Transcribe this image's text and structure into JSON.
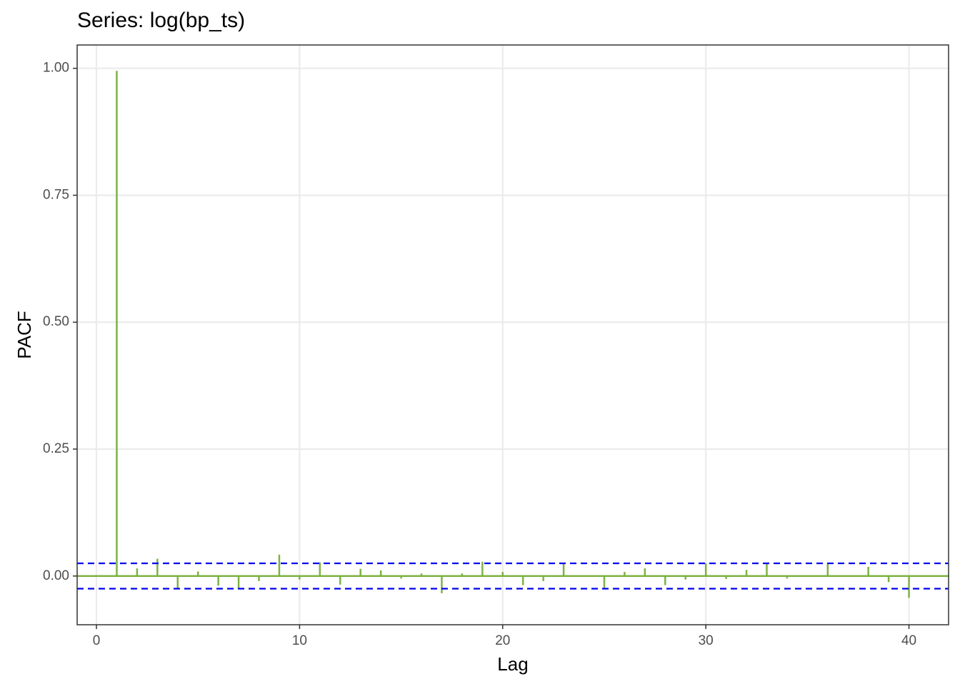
{
  "chart_data": {
    "type": "pacf",
    "title": "Series: log(bp_ts)",
    "x_label": "Lag",
    "y_label": "PACF",
    "x": [
      1,
      2,
      3,
      4,
      5,
      6,
      7,
      8,
      9,
      10,
      11,
      12,
      13,
      14,
      15,
      16,
      17,
      18,
      19,
      20,
      21,
      22,
      23,
      24,
      25,
      26,
      27,
      28,
      29,
      30,
      31,
      32,
      33,
      34,
      35,
      36,
      37,
      38,
      39,
      40
    ],
    "values": [
      0.995,
      0.015,
      0.034,
      -0.025,
      0.009,
      -0.019,
      -0.025,
      -0.01,
      0.042,
      -0.007,
      0.027,
      -0.017,
      0.014,
      0.011,
      -0.005,
      0.005,
      -0.034,
      0.005,
      0.028,
      0.008,
      -0.018,
      -0.01,
      0.024,
      -0.001,
      -0.024,
      0.008,
      0.015,
      -0.018,
      -0.007,
      0.025,
      -0.006,
      0.012,
      0.025,
      -0.005,
      -0.001,
      0.024,
      0,
      0.018,
      -0.012,
      -0.043
    ],
    "color": "#7cb342",
    "ci": [
      -0.025,
      0.025
    ],
    "ci_color": "#0000ee",
    "xlim": [
      -0.95,
      41.95
    ],
    "ylim": [
      -0.096,
      1.046
    ],
    "xticks": [
      0,
      10,
      20,
      30,
      40
    ],
    "yticks": [
      {
        "value": 0,
        "label": "0.00"
      },
      {
        "value": 0.25,
        "label": "0.25"
      },
      {
        "value": 0.5,
        "label": "0.50"
      },
      {
        "value": 0.75,
        "label": "0.75"
      },
      {
        "value": 1,
        "label": "1.00"
      }
    ],
    "grid": true
  }
}
